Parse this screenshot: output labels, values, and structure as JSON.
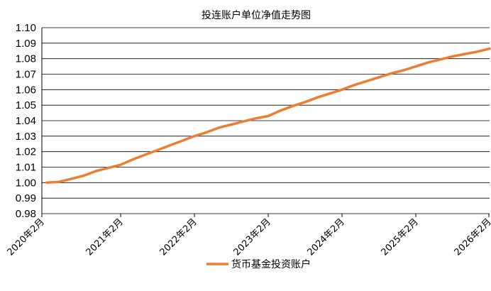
{
  "chart_data": {
    "type": "line",
    "title": "投连账户单位净值走势图",
    "xlabel": "",
    "ylabel": "",
    "x_ticks": [
      "2020年2月",
      "2021年2月",
      "2022年2月",
      "2023年2月",
      "2024年2月",
      "2025年2月",
      "2026年2月"
    ],
    "y_ticks": [
      "0.98",
      "0.99",
      "1.00",
      "1.01",
      "1.02",
      "1.03",
      "1.04",
      "1.05",
      "1.06",
      "1.07",
      "1.08",
      "1.09",
      "1.10"
    ],
    "ylim": [
      0.98,
      1.1
    ],
    "grid": true,
    "legend_position": "bottom",
    "series": [
      {
        "name": "货币基金投资账户",
        "color": "#ED7D31",
        "x": [
          "2020-02",
          "2020-04",
          "2020-06",
          "2020-08",
          "2020-10",
          "2020-12",
          "2021-02",
          "2021-04",
          "2021-06",
          "2021-08",
          "2021-10",
          "2021-12",
          "2022-02",
          "2022-04",
          "2022-06",
          "2022-08",
          "2022-10",
          "2022-12",
          "2023-02",
          "2023-04",
          "2023-06",
          "2023-08",
          "2023-10",
          "2023-12",
          "2024-02",
          "2024-04",
          "2024-06",
          "2024-08",
          "2024-10",
          "2024-12",
          "2025-02",
          "2025-04",
          "2025-06",
          "2025-08",
          "2025-10",
          "2025-12",
          "2026-02"
        ],
        "values": [
          1.0,
          1.0005,
          1.0025,
          1.0045,
          1.0075,
          1.0095,
          1.0115,
          1.015,
          1.018,
          1.021,
          1.024,
          1.027,
          1.03,
          1.0325,
          1.0355,
          1.0375,
          1.0395,
          1.0415,
          1.043,
          1.0465,
          1.0495,
          1.052,
          1.055,
          1.0575,
          1.06,
          1.063,
          1.0655,
          1.068,
          1.0705,
          1.0725,
          1.075,
          1.0775,
          1.0795,
          1.0815,
          1.083,
          1.0845,
          1.0865
        ]
      }
    ]
  }
}
